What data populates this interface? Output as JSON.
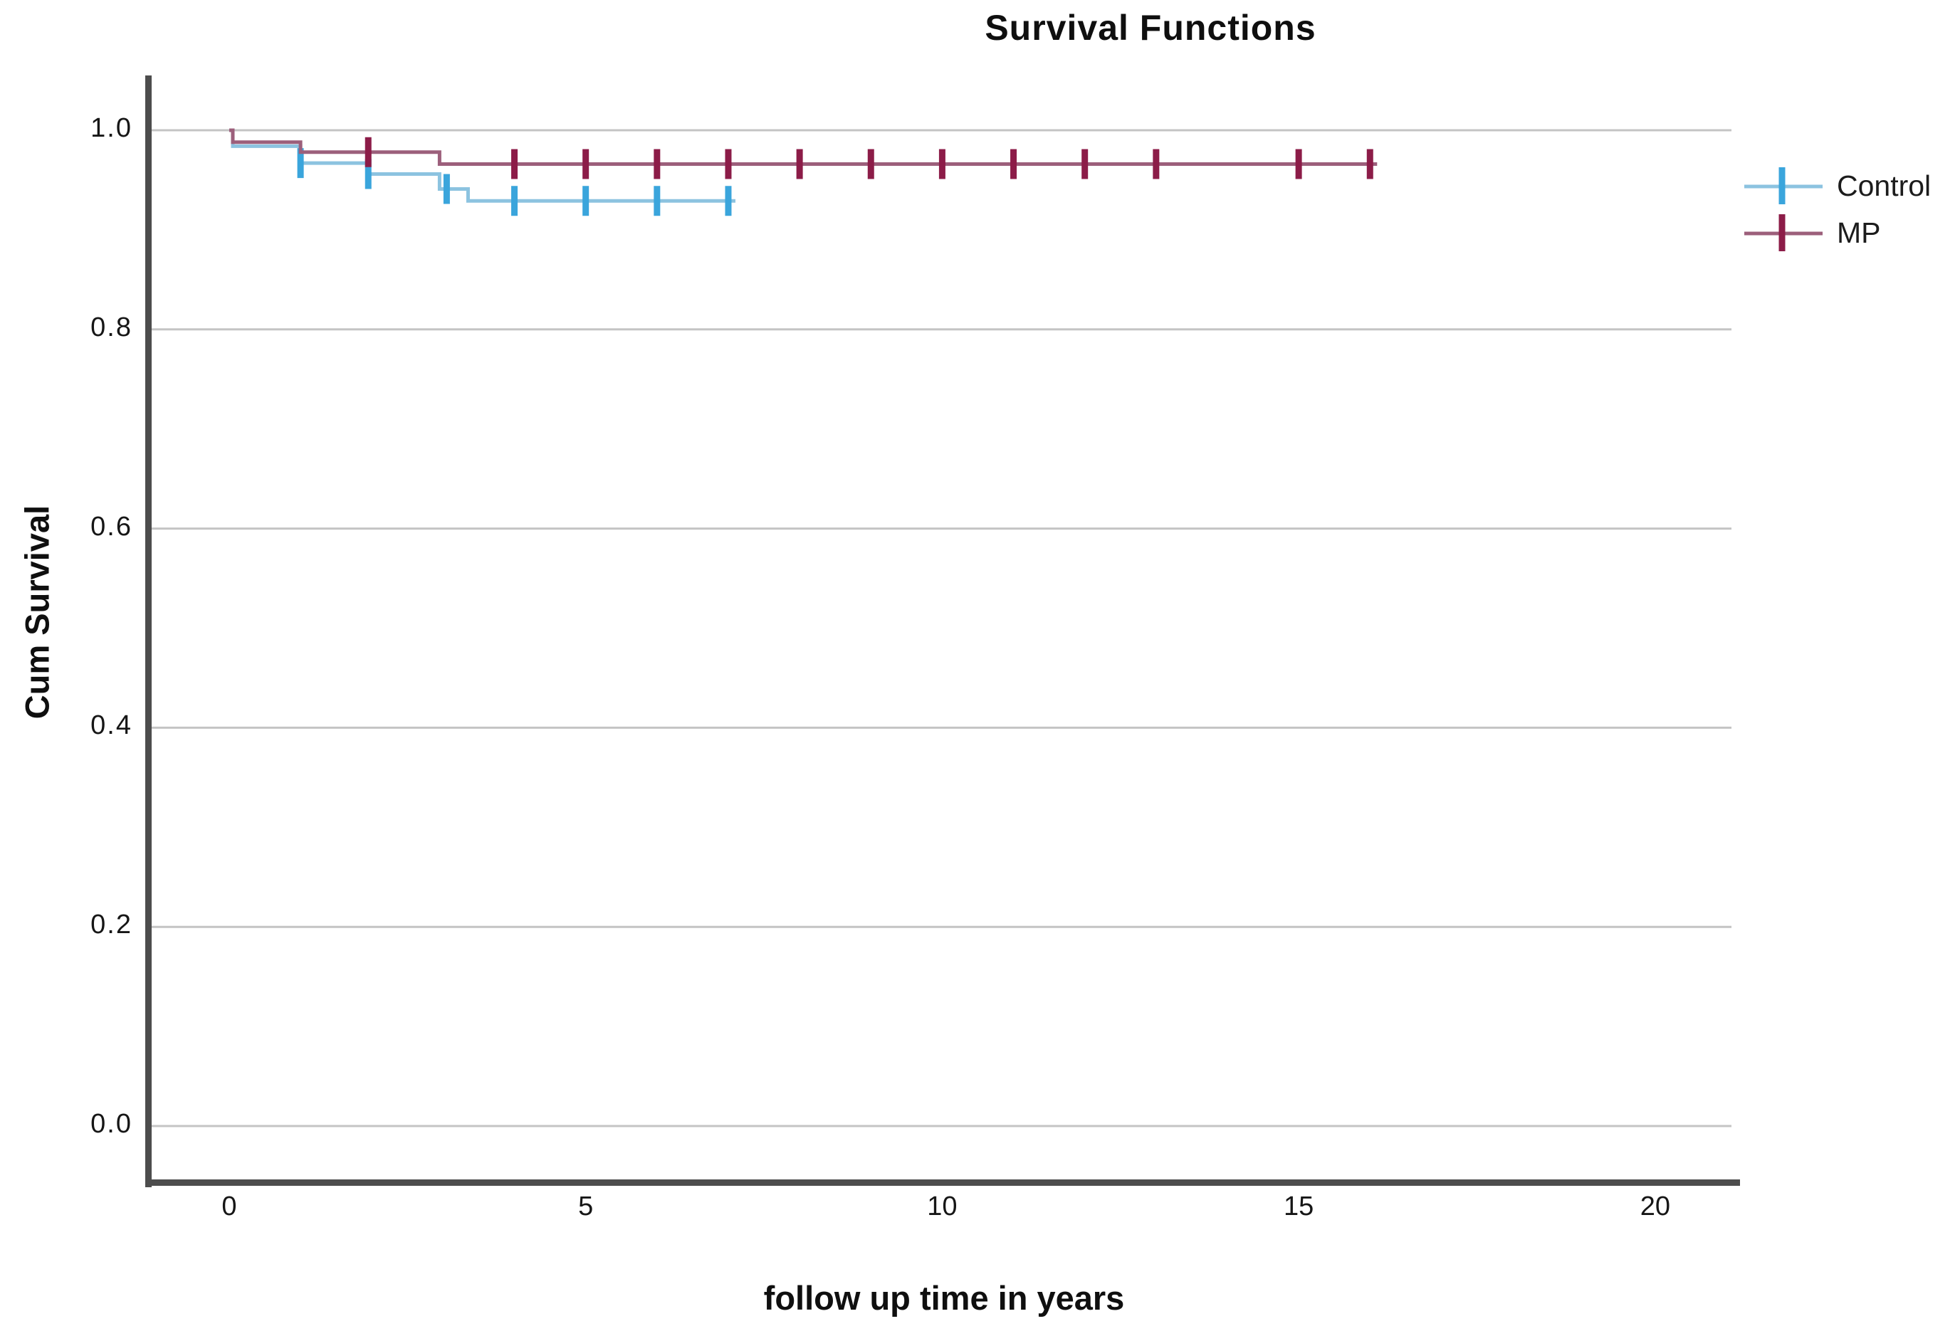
{
  "chart_data": {
    "type": "line",
    "subtype": "kaplan-meier-step",
    "title": "Survival Functions",
    "xlabel": "follow up time in years",
    "ylabel": "Cum Survival",
    "xlim": [
      -1.118,
      21.07
    ],
    "ylim": [
      -0.055,
      1.055
    ],
    "grid": "horizontal-only",
    "grid_color": "#c4c4c4",
    "axis_color": "#4d4d4d",
    "text_color": "#161616",
    "legend_position": "right",
    "x_ticks": [
      {
        "v": 0,
        "label": "0"
      },
      {
        "v": 5,
        "label": "5"
      },
      {
        "v": 10,
        "label": "10"
      },
      {
        "v": 15,
        "label": "15"
      },
      {
        "v": 20,
        "label": "20"
      }
    ],
    "y_ticks": [
      {
        "v": 1.0,
        "label": "1.0"
      },
      {
        "v": 0.8,
        "label": "0.8"
      },
      {
        "v": 0.6,
        "label": "0.6"
      },
      {
        "v": 0.4,
        "label": "0.4"
      },
      {
        "v": 0.2,
        "label": "0.2"
      },
      {
        "v": 0.0,
        "label": "0.0"
      }
    ],
    "series": [
      {
        "name": "Control",
        "line_color": "#8cc3e0",
        "censor_color": "#3aa5dc",
        "steps": [
          [
            0,
            1.0
          ],
          [
            0.05,
            0.984
          ],
          [
            1.0,
            0.967
          ],
          [
            1.95,
            0.956
          ],
          [
            2.95,
            0.941
          ],
          [
            3.35,
            0.929
          ]
        ],
        "end_time": 7.1,
        "censor_times": [
          1.0,
          1.95,
          3.05,
          4,
          5,
          6,
          7
        ]
      },
      {
        "name": "MP",
        "line_color": "#9c5f7b",
        "censor_color": "#8c1c48",
        "steps": [
          [
            0,
            1.0
          ],
          [
            0.05,
            0.988
          ],
          [
            1.0,
            0.978
          ],
          [
            2.95,
            0.966
          ]
        ],
        "end_time": 16.1,
        "censor_times": [
          1.95,
          4,
          5,
          6,
          7,
          8,
          9,
          10,
          11,
          12,
          13,
          15,
          16
        ]
      }
    ]
  }
}
